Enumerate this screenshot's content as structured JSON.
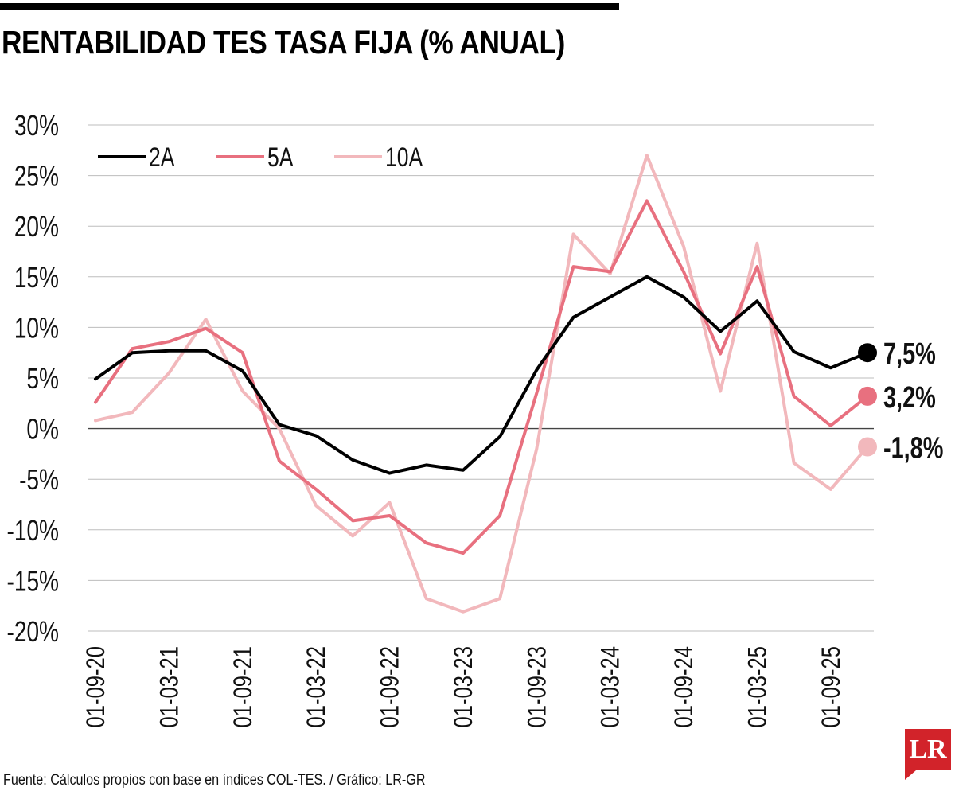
{
  "title": "RENTABILIDAD TES TASA FIJA (% ANUAL)",
  "source": "Fuente: Cálculos propios con base en índices COL-TES. / Gráfico: LR-GR",
  "logo": {
    "text": "LR",
    "color": "#d2232a"
  },
  "chart_data": {
    "type": "line",
    "ylim": [
      -20,
      30
    ],
    "yticks": [
      -20,
      -15,
      -10,
      -5,
      0,
      5,
      10,
      15,
      20,
      25,
      30
    ],
    "ytick_labels": [
      "-20%",
      "-15%",
      "-10%",
      "-5%",
      "0%",
      "5%",
      "10%",
      "15%",
      "20%",
      "25%",
      "30%"
    ],
    "grid": true,
    "legend": "top-left",
    "x_tick_labels": [
      "01-09-20",
      "01-03-21",
      "01-09-21",
      "01-03-22",
      "01-09-22",
      "01-03-23",
      "01-09-23",
      "01-03-24",
      "01-09-24",
      "01-03-25",
      "01-09-25"
    ],
    "x": [
      "01-09-20",
      "01-12-20",
      "01-03-21",
      "01-06-21",
      "01-09-21",
      "01-12-21",
      "01-03-22",
      "01-06-22",
      "01-09-22",
      "01-12-22",
      "01-03-23",
      "01-06-23",
      "01-09-23",
      "01-12-23",
      "01-03-24",
      "01-06-24",
      "01-09-24",
      "01-12-24",
      "01-03-25",
      "01-06-25",
      "01-09-25",
      "01-12-25"
    ],
    "series": [
      {
        "name": "2A",
        "color": "#000000",
        "end_label": "7,5%",
        "values": [
          4.9,
          7.5,
          7.7,
          7.7,
          5.7,
          0.4,
          -0.7,
          -3.1,
          -4.4,
          -3.6,
          -4.1,
          -0.8,
          5.8,
          11.0,
          13.0,
          15.0,
          13.0,
          9.6,
          12.6,
          7.6,
          6.0,
          7.5
        ]
      },
      {
        "name": "5A",
        "color": "#e8707f",
        "end_label": "3,2%",
        "values": [
          2.6,
          7.9,
          8.6,
          9.9,
          7.5,
          -3.2,
          -6.0,
          -9.1,
          -8.6,
          -11.3,
          -12.3,
          -8.6,
          3.5,
          16.0,
          15.5,
          22.5,
          15.5,
          7.4,
          16.0,
          3.2,
          0.3,
          3.2
        ]
      },
      {
        "name": "10A",
        "color": "#f2b8bc",
        "end_label": "-1,8%",
        "values": [
          0.8,
          1.6,
          5.5,
          10.8,
          3.7,
          0.0,
          -7.6,
          -10.6,
          -7.3,
          -16.8,
          -18.1,
          -16.8,
          -2.0,
          19.2,
          15.3,
          27.0,
          18.0,
          3.7,
          18.3,
          -3.4,
          -6.0,
          -1.8
        ]
      }
    ]
  }
}
